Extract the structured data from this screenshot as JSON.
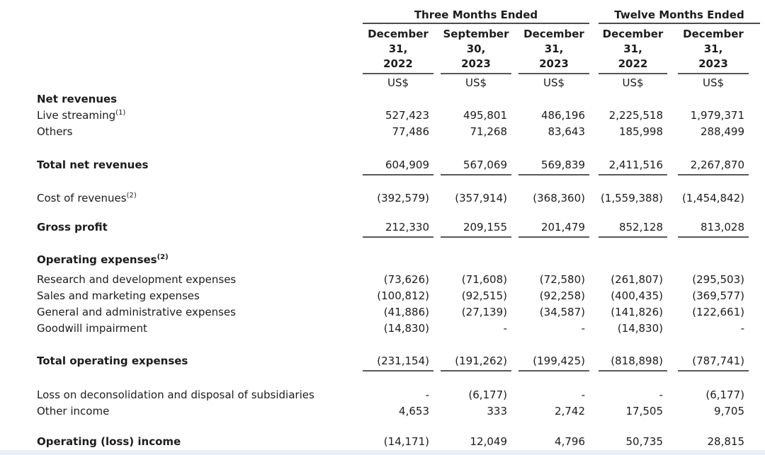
{
  "colors": {
    "background": "#ffffff",
    "rule": "#58585a",
    "text": "#1c1c1e",
    "bottom_strip": "#e9eff7"
  },
  "table": {
    "groups": [
      {
        "label": "Three Months Ended"
      },
      {
        "label": "Twelve Months Ended"
      }
    ],
    "columns": [
      {
        "line1": "December",
        "line2": "31,",
        "line3": "2022",
        "unit": "US$"
      },
      {
        "line1": "September",
        "line2": "30,",
        "line3": "2023",
        "unit": "US$"
      },
      {
        "line1": "December",
        "line2": "31,",
        "line3": "2023",
        "unit": "US$"
      },
      {
        "line1": "December",
        "line2": "31,",
        "line3": "2022",
        "unit": "US$"
      },
      {
        "line1": "December",
        "line2": "31,",
        "line3": "2023",
        "unit": "US$"
      }
    ],
    "rows": [
      {
        "label": "Net revenues",
        "sup": "",
        "bold": true,
        "values": [
          "",
          "",
          "",
          "",
          ""
        ]
      },
      {
        "label": "Live streaming",
        "sup": "(1)",
        "values": [
          "527,423",
          "495,801",
          "486,196",
          "2,225,518",
          "1,979,371"
        ]
      },
      {
        "label": "Others",
        "sup": "",
        "values": [
          "77,486",
          "71,268",
          "83,643",
          "185,998",
          "288,499"
        ]
      },
      {
        "label": "Total net revenues",
        "sup": "",
        "bold": true,
        "underline": true,
        "values": [
          "604,909",
          "567,069",
          "569,839",
          "2,411,516",
          "2,267,870"
        ]
      },
      {
        "label": "Cost of revenues",
        "sup": "(2)",
        "values": [
          "(392,579)",
          "(357,914)",
          "(368,360)",
          "(1,559,388)",
          "(1,454,842)"
        ]
      },
      {
        "label": "Gross profit",
        "sup": "",
        "bold": true,
        "underline": true,
        "values": [
          "212,330",
          "209,155",
          "201,479",
          "852,128",
          "813,028"
        ]
      },
      {
        "label": "Operating expenses",
        "sup": "(2)",
        "bold": true,
        "values": [
          "",
          "",
          "",
          "",
          ""
        ]
      },
      {
        "label": "Research and development expenses",
        "sup": "",
        "values": [
          "(73,626)",
          "(71,608)",
          "(72,580)",
          "(261,807)",
          "(295,503)"
        ]
      },
      {
        "label": "Sales and marketing expenses",
        "sup": "",
        "values": [
          "(100,812)",
          "(92,515)",
          "(92,258)",
          "(400,435)",
          "(369,577)"
        ]
      },
      {
        "label": "General and administrative expenses",
        "sup": "",
        "values": [
          "(41,886)",
          "(27,139)",
          "(34,587)",
          "(141,826)",
          "(122,661)"
        ]
      },
      {
        "label": "Goodwill impairment",
        "sup": "",
        "values": [
          "(14,830)",
          "-",
          "-",
          "(14,830)",
          "-"
        ]
      },
      {
        "label": "Total operating expenses",
        "sup": "",
        "bold": true,
        "underline": true,
        "values": [
          "(231,154)",
          "(191,262)",
          "(199,425)",
          "(818,898)",
          "(787,741)"
        ]
      },
      {
        "label": "Loss on deconsolidation and disposal of subsidiaries",
        "sup": "",
        "values": [
          "-",
          "(6,177)",
          "-",
          "-",
          "(6,177)"
        ]
      },
      {
        "label": "Other income",
        "sup": "",
        "values": [
          "4,653",
          "333",
          "2,742",
          "17,505",
          "9,705"
        ]
      },
      {
        "label": "Operating (loss) income",
        "sup": "",
        "bold": true,
        "underline": true,
        "values": [
          "(14,171)",
          "12,049",
          "4,796",
          "50,735",
          "28,815"
        ]
      }
    ]
  }
}
